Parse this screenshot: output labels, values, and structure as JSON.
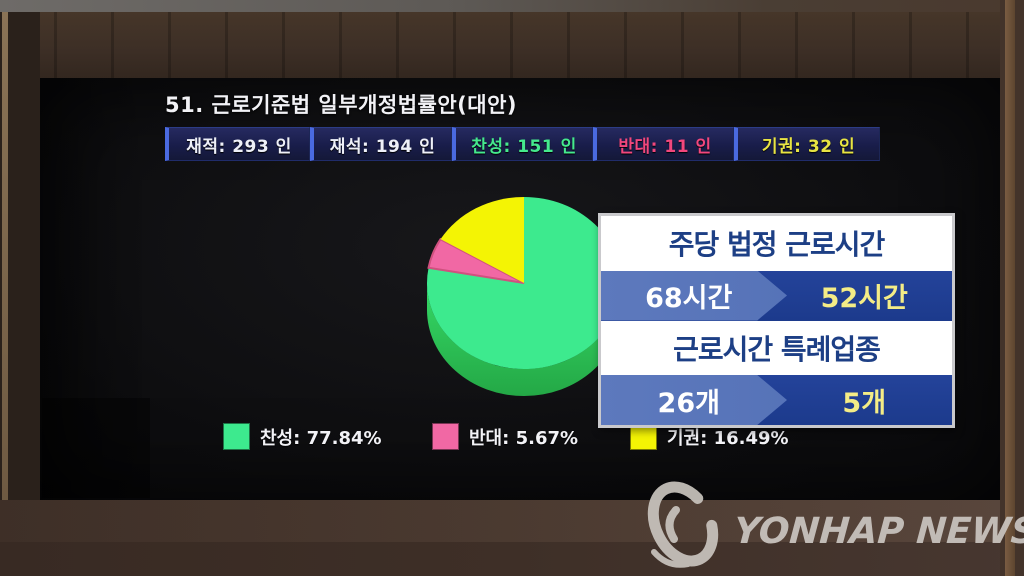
{
  "screen": {
    "title": "51. 근로기준법 일부개정법률안(대안)",
    "vote_boxes": [
      {
        "label": "재적: 293 인",
        "color": "#eef0f8"
      },
      {
        "label": "재석: 194 인",
        "color": "#eef0f8"
      },
      {
        "label": "찬성: 151 인",
        "color": "#45e98d"
      },
      {
        "label": "반대: 11 인",
        "color": "#f2477d"
      },
      {
        "label": "기권: 32 인",
        "color": "#e8e443"
      }
    ],
    "legend": [
      {
        "label": "찬성: 77.84%",
        "swatch": "#3dea8e"
      },
      {
        "label": "반대: 5.67%",
        "swatch": "#f168a4"
      },
      {
        "label": "기권: 16.49%",
        "swatch": "#f4f404"
      }
    ]
  },
  "chart_data": {
    "type": "pie",
    "style": "3d",
    "title": "51. 근로기준법 일부개정법률안(대안)",
    "labels": [
      "찬성",
      "반대",
      "기권"
    ],
    "values": [
      77.84,
      5.67,
      16.49
    ],
    "counts": {
      "재적": 293,
      "재석": 194,
      "찬성": 151,
      "반대": 11,
      "기권": 32
    },
    "colors": [
      "#3dea8e",
      "#f168a4",
      "#f4f404"
    ],
    "start_angle": "top",
    "direction": "clockwise",
    "legend_position": "bottom"
  },
  "overlay": {
    "section1": {
      "title": "주당 법정 근로시간",
      "before": "68시간",
      "after": "52시간"
    },
    "section2": {
      "title": "근로시간 특례업종",
      "before": "26개",
      "after": "5개"
    }
  },
  "watermark": {
    "text": "YONHAP NEWS"
  },
  "colors": {
    "banner_left": "#5673b8",
    "banner_right": "#1c3a8c",
    "banner_highlight": "#f4ec86",
    "overlay_title": "#1d3f85",
    "box_border_blue": "#4a6ae0",
    "approve_green": "#3dea8e",
    "oppose_pink": "#f168a4",
    "abstain_yellow": "#f4f404"
  }
}
